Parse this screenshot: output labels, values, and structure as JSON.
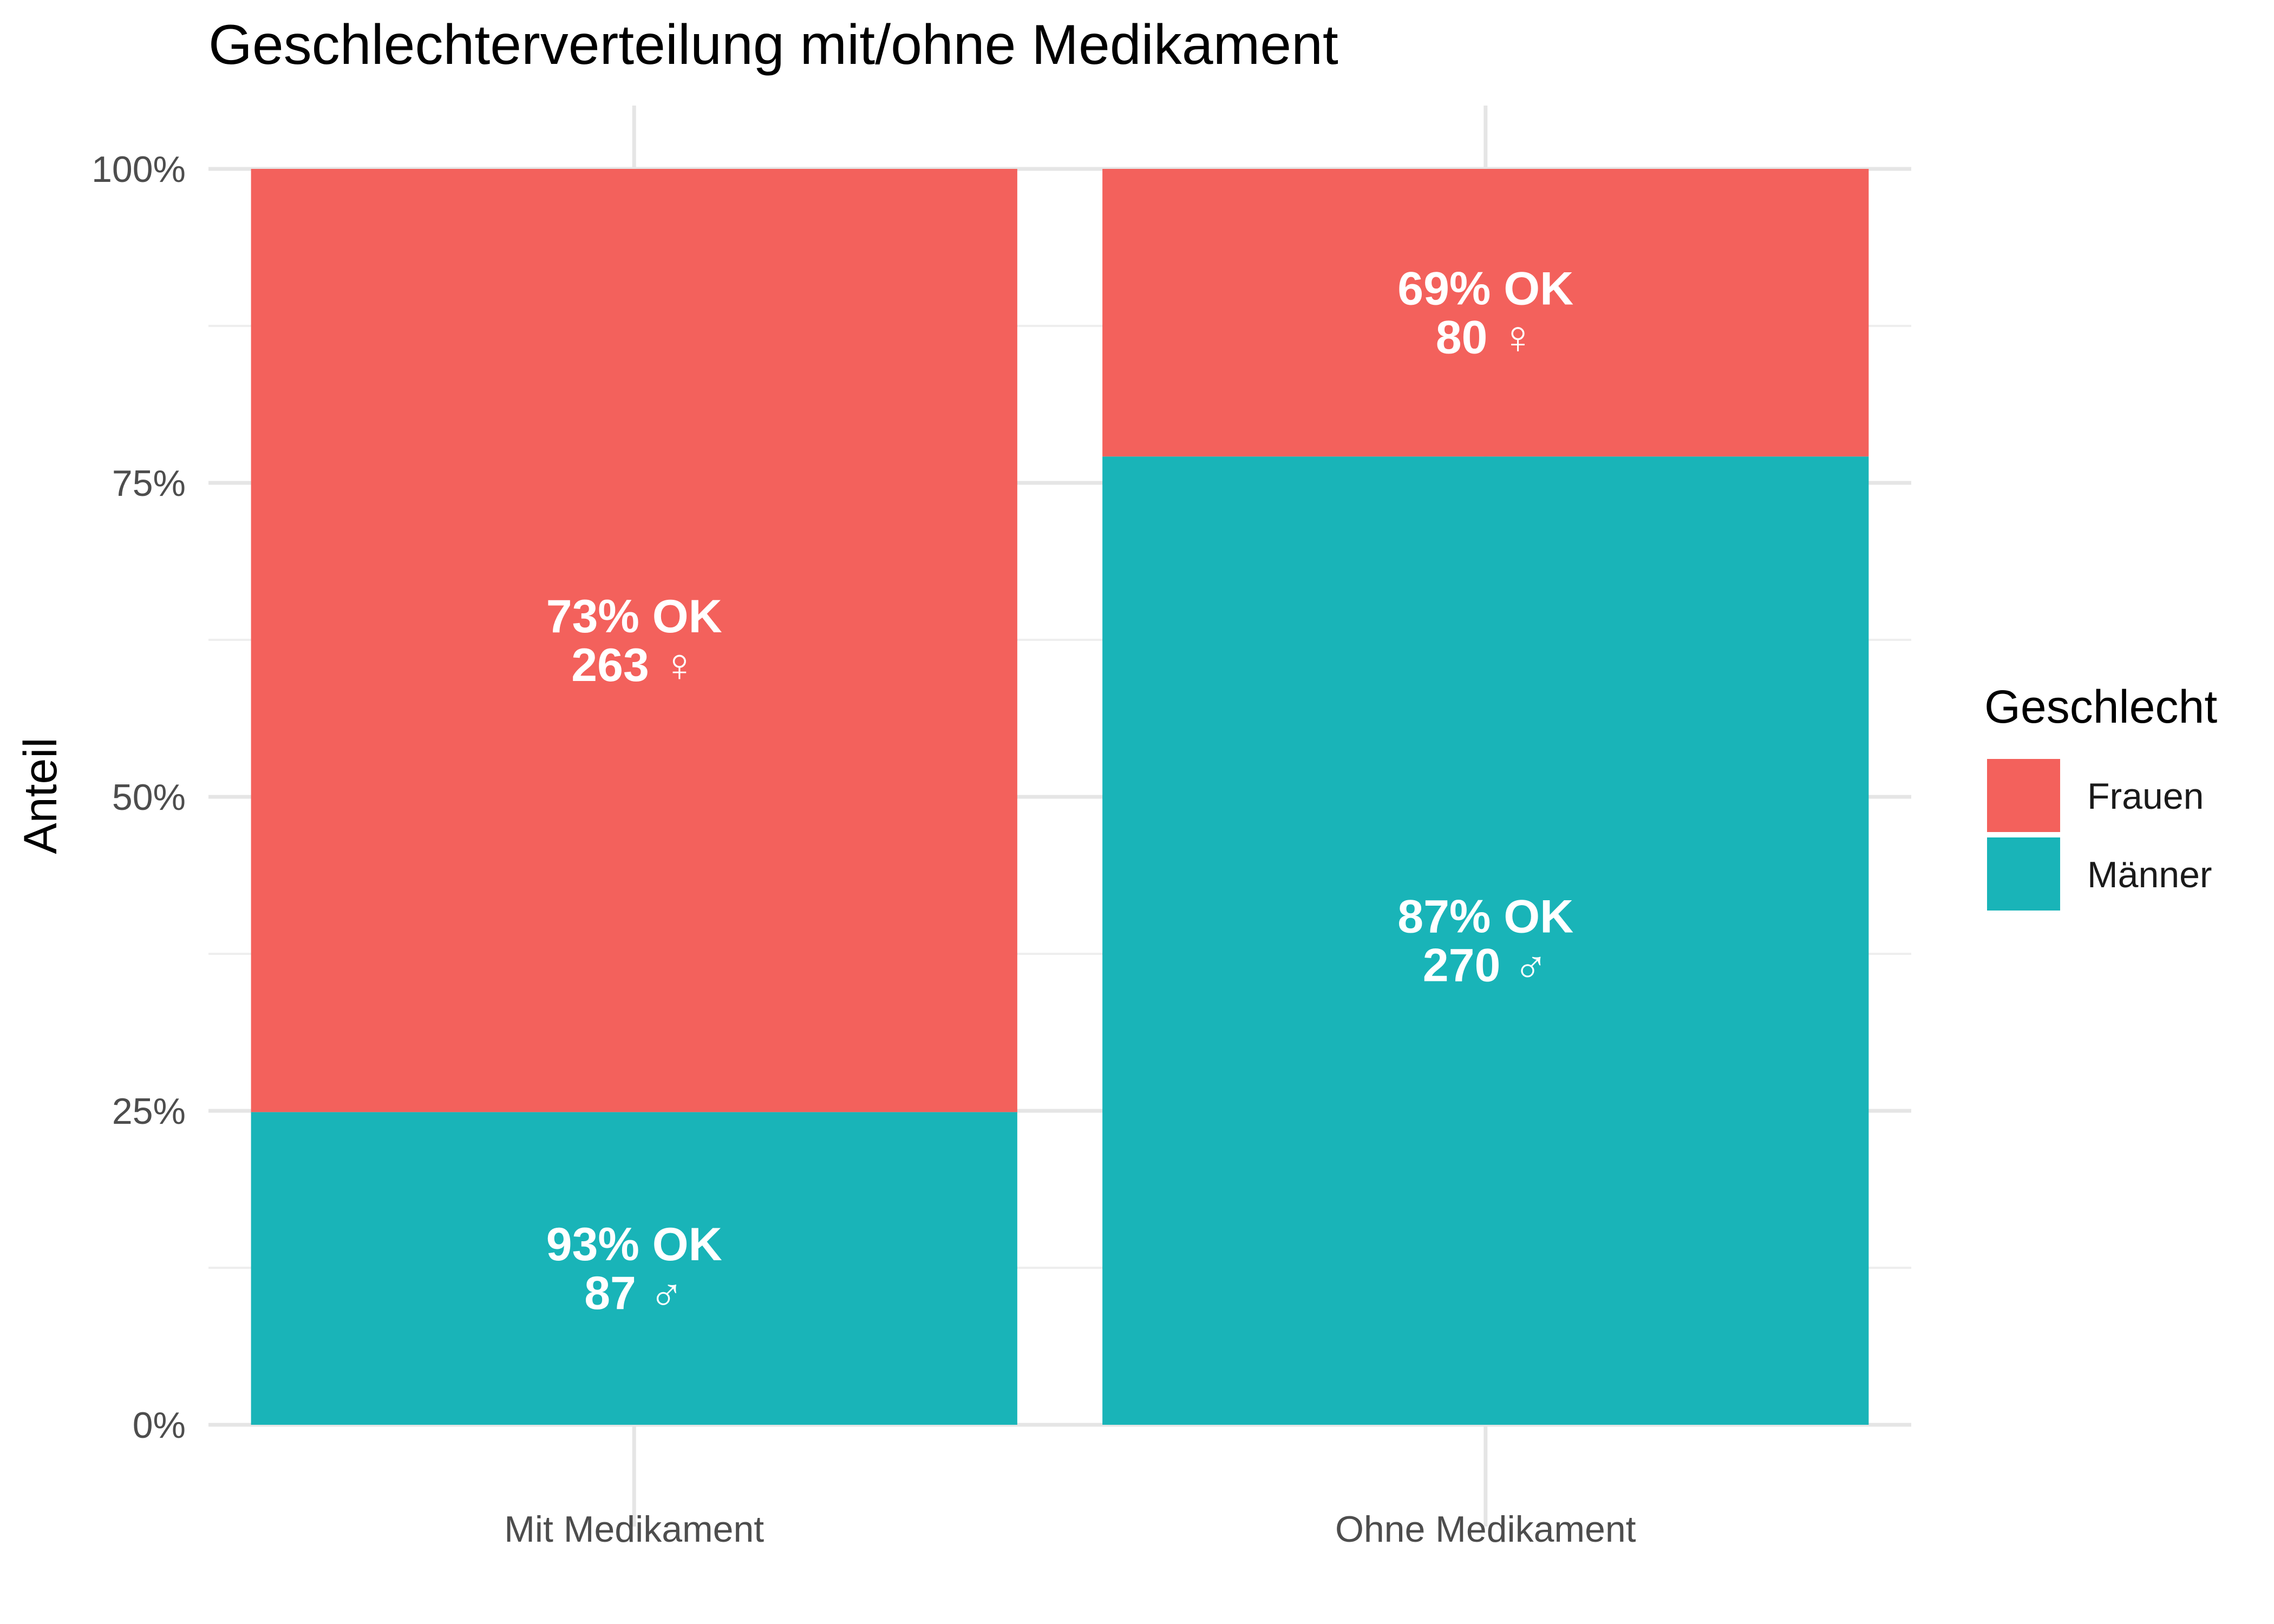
{
  "chart_data": {
    "type": "bar",
    "stacked": true,
    "title": "Geschlechterverteilung mit/ohne Medikament",
    "xlabel": "",
    "ylabel": "Anteil",
    "ylim": [
      0,
      1
    ],
    "y_ticks": [
      0,
      0.25,
      0.5,
      0.75,
      1
    ],
    "y_tick_labels": [
      "0%",
      "25%",
      "50%",
      "75%",
      "100%"
    ],
    "grid": true,
    "legend": {
      "title": "Geschlecht",
      "position": "right"
    },
    "categories": [
      "Mit Medikament",
      "Ohne Medikament"
    ],
    "series": [
      {
        "name": "Männer",
        "color": "#19B4B8",
        "values": [
          0.249,
          0.771
        ],
        "labels": [
          "93% OK\n87 ♂",
          "87% OK\n270 ♂"
        ]
      },
      {
        "name": "Frauen",
        "color": "#F3615C",
        "values": [
          0.751,
          0.229
        ],
        "labels": [
          "73% OK\n263 ♀",
          "69% OK\n80 ♀"
        ]
      }
    ],
    "legend_order": [
      "Frauen",
      "Männer"
    ]
  }
}
